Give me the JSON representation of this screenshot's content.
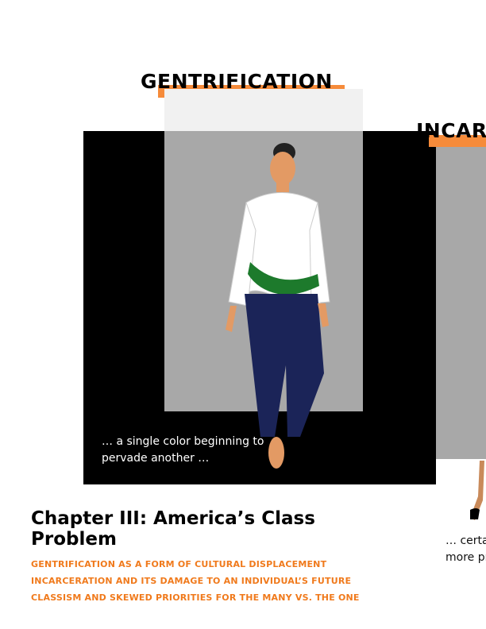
{
  "sections": [
    {
      "title": "GENTRIFICATION",
      "caption": [
        "… a single color beginning to",
        "pervade another …"
      ]
    },
    {
      "title": "INCAR",
      "caption": [
        "… certa",
        "more pr"
      ]
    }
  ],
  "chapter": {
    "heading": [
      "Chapter III: America’s Class",
      "Problem"
    ],
    "topics": [
      "GENTRIFICATION AS A FORM OF CULTURAL DISPLACEMENT",
      "INCARCERATION AND ITS DAMAGE TO AN INDIVIDUAL’S FUTURE",
      "CLASSISM AND SKEWED PRIORITIES FOR THE MANY VS. THE ONE"
    ]
  }
}
